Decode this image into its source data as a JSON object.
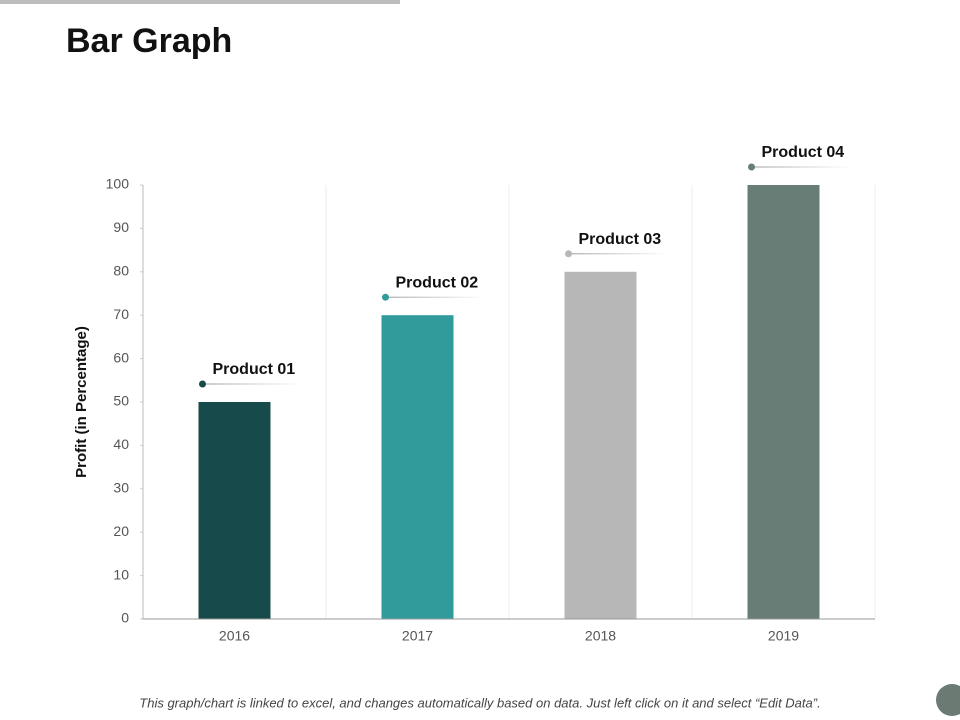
{
  "chart_data": {
    "type": "bar",
    "title": "Bar Graph",
    "y_label": "Profit (in Percentage)",
    "categories": [
      "2016",
      "2017",
      "2018",
      "2019"
    ],
    "values": [
      50,
      70,
      80,
      100
    ],
    "colors": [
      "#174a4a",
      "#319b9b",
      "#b7b7b7",
      "#687d75"
    ],
    "annotations": [
      "Product 01",
      "Product 02",
      "Product 03",
      "Product 04"
    ],
    "ylim": [
      0,
      100
    ],
    "yticks": [
      0,
      10,
      20,
      30,
      40,
      50,
      60,
      70,
      80,
      90,
      100
    ]
  },
  "footer": "This graph/chart is linked to excel, and changes automatically based on data.  Just left click on it and select “Edit Data”."
}
